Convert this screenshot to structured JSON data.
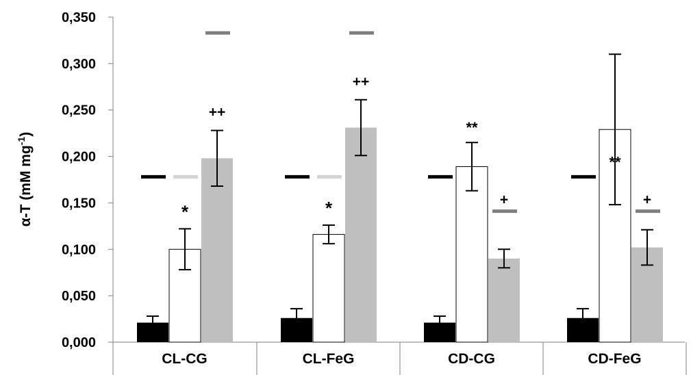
{
  "chart_data": {
    "type": "bar",
    "title": "",
    "xlabel": "",
    "ylabel": "α-T (mM mg",
    "ylabel_sup": "-1",
    "ylabel_close": ")",
    "ylim": [
      0,
      0.35
    ],
    "yticks": [
      "0,000",
      "0,050",
      "0,100",
      "0,150",
      "0,200",
      "0,250",
      "0,300",
      "0,350"
    ],
    "yticks_values": [
      0,
      0.05,
      0.1,
      0.15,
      0.2,
      0.25,
      0.3,
      0.35
    ],
    "grid": false,
    "legend": "none",
    "categories": [
      "CL-CG",
      "CL-FeG",
      "CD-CG",
      "CD-FeG"
    ],
    "series": [
      {
        "color": "#000000",
        "values": [
          0.021,
          0.026,
          0.021,
          0.026
        ],
        "errors": [
          0.007,
          0.01,
          0.007,
          0.01
        ],
        "reference_line": {
          "value": 0.178,
          "color": "#000000"
        },
        "annotations": [
          "",
          "",
          "",
          ""
        ]
      },
      {
        "color": "#ffffff",
        "values": [
          0.1,
          0.116,
          0.189,
          0.229
        ],
        "errors": [
          0.022,
          0.01,
          0.026,
          0.081
        ],
        "reference_line": {
          "value": 0.178,
          "color": "#d3d3d3"
        },
        "annotations": [
          "*",
          "*",
          "**",
          "**"
        ]
      },
      {
        "color": "#bfbfbf",
        "values": [
          0.198,
          0.231,
          0.09,
          0.102
        ],
        "errors": [
          0.03,
          0.03,
          0.01,
          0.019
        ],
        "reference_lines": [
          0.333,
          0.333,
          0.141,
          0.141
        ],
        "reference_line_color": "#7f7f7f",
        "annotations": [
          "++",
          "++",
          "+",
          "+"
        ]
      }
    ]
  }
}
